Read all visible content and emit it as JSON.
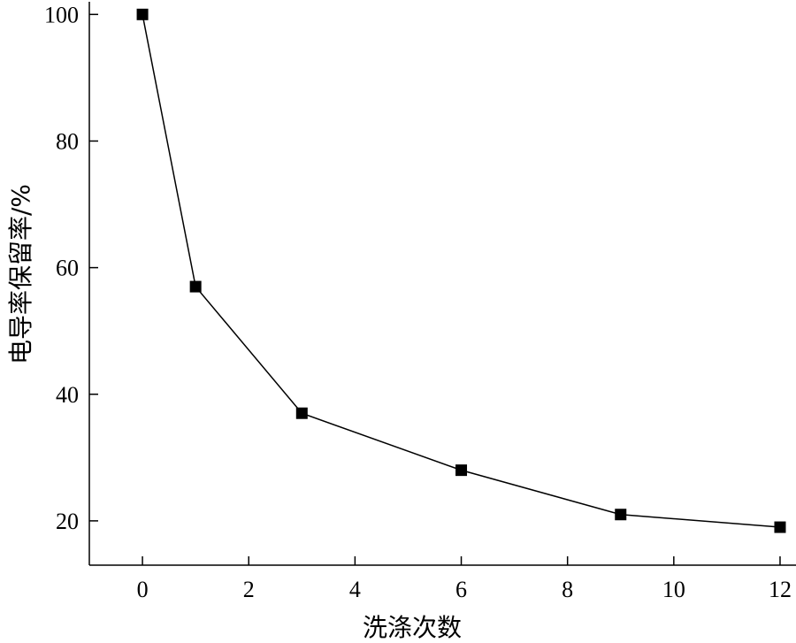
{
  "chart_data": {
    "type": "line",
    "title": "",
    "xlabel": "洗涤次数",
    "ylabel": "电导率保留率/%",
    "x": [
      0,
      1,
      3,
      6,
      9,
      12
    ],
    "series": [
      {
        "values": [
          100,
          57,
          37,
          28,
          21,
          19
        ]
      }
    ],
    "xlim": [
      -1,
      12.3
    ],
    "ylim": [
      13,
      102
    ],
    "xticks": [
      0,
      2,
      4,
      6,
      8,
      10,
      12
    ],
    "yticks": [
      20,
      40,
      60,
      80,
      100
    ],
    "xtick_labels": [
      "0",
      "2",
      "4",
      "6",
      "8",
      "10",
      "12"
    ],
    "ytick_labels": [
      "20",
      "40",
      "60",
      "80",
      "100"
    ],
    "marker": "filled-square",
    "grid": false,
    "line_color": "#000000",
    "marker_color": "#000000"
  }
}
